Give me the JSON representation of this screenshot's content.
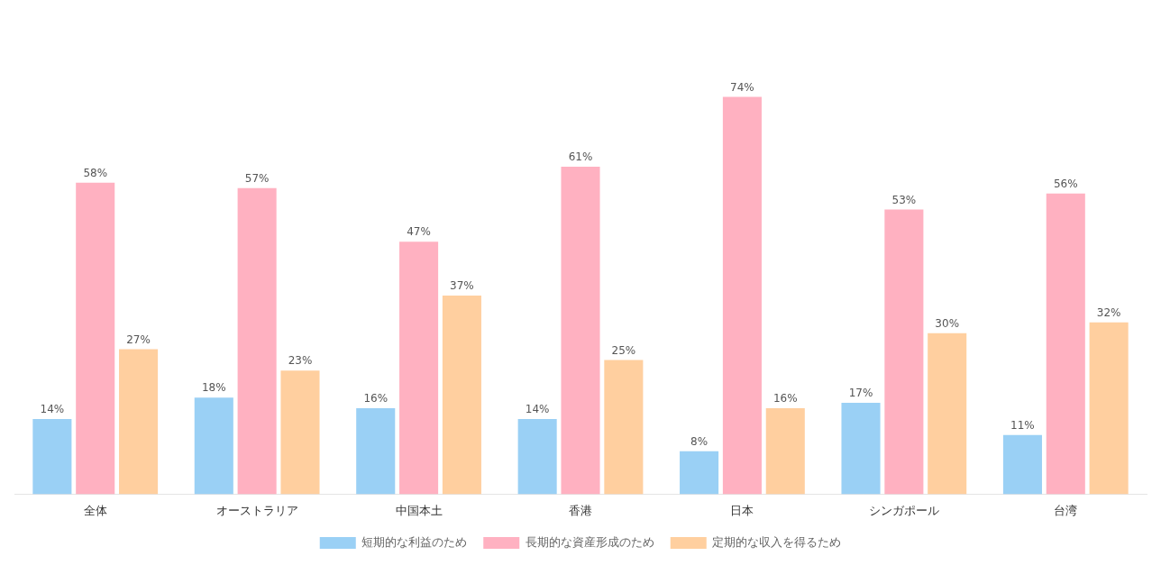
{
  "chart_data": {
    "type": "bar",
    "categories": [
      "全体",
      "オーストラリア",
      "中国本土",
      "香港",
      "日本",
      "シンガポール",
      "台湾"
    ],
    "series": [
      {
        "name": "短期的な利益のため",
        "values": [
          14,
          18,
          16,
          14,
          8,
          17,
          11
        ],
        "value_labels": [
          "14%",
          "18%",
          "16%",
          "14%",
          "8%",
          "17%",
          "11%"
        ]
      },
      {
        "name": "長期的な資産形成のため",
        "values": [
          58,
          57,
          47,
          61,
          74,
          53,
          56
        ],
        "value_labels": [
          "58%",
          "57%",
          "47%",
          "61%",
          "74%",
          "53%",
          "56%"
        ]
      },
      {
        "name": "定期的な収入を得るため",
        "values": [
          27,
          23,
          37,
          25,
          16,
          30,
          32
        ],
        "value_labels": [
          "27%",
          "23%",
          "37%",
          "25%",
          "16%",
          "30%",
          "32%"
        ]
      }
    ],
    "ylim": [
      0,
      88
    ],
    "grid": false,
    "legend": "bottom",
    "data_labels": true,
    "tick_labels": "x"
  }
}
